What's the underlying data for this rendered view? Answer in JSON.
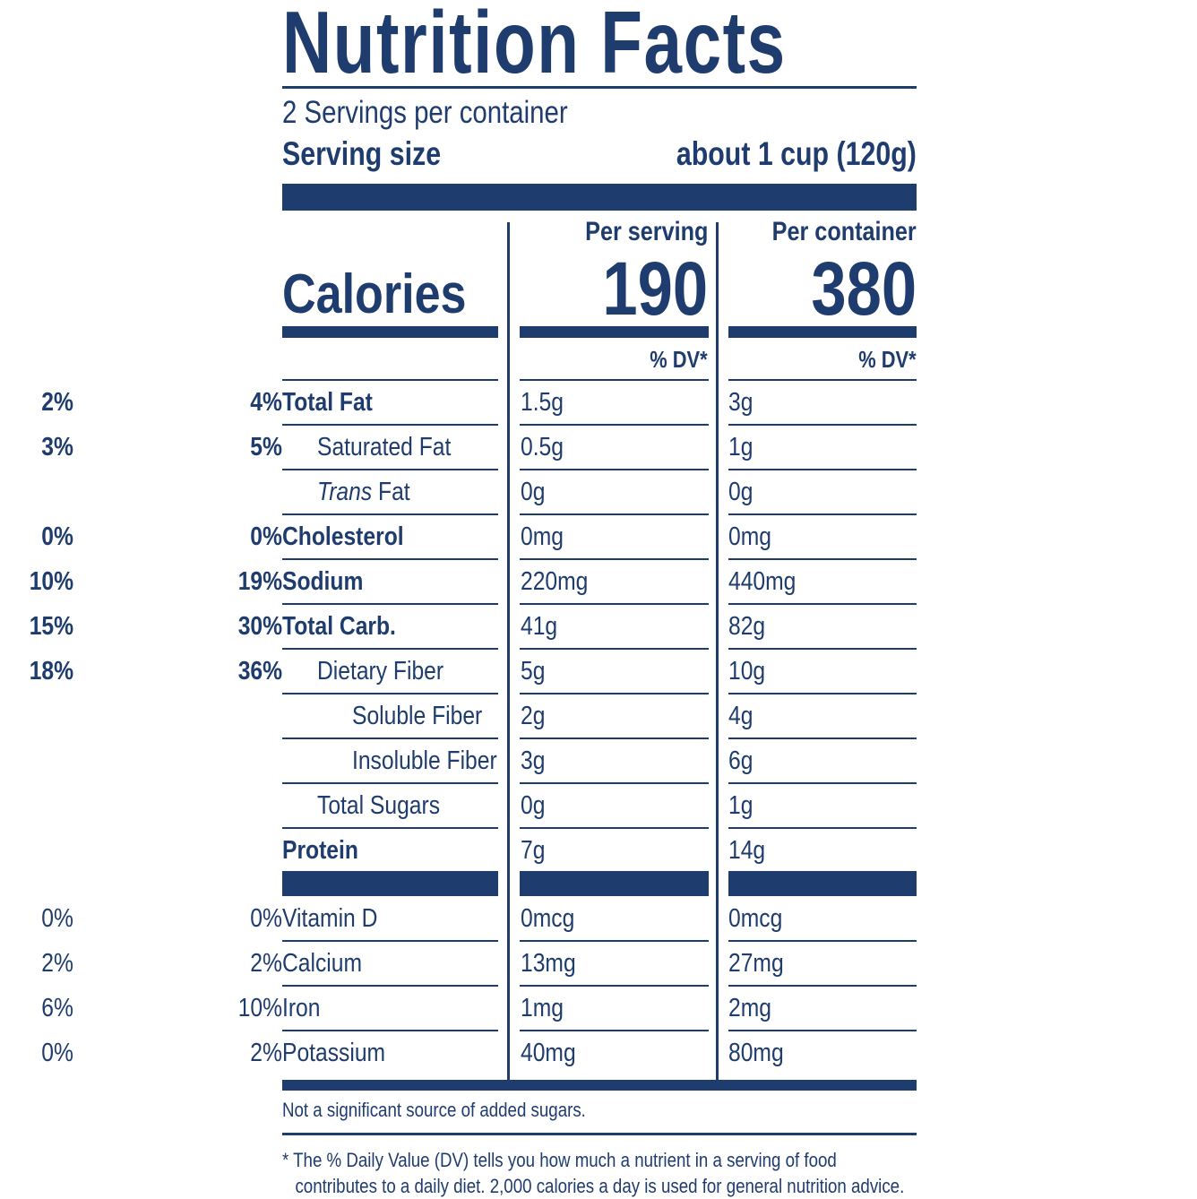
{
  "title": "Nutrition Facts",
  "servings_per_container": "2 Servings per container",
  "serving_size_label": "Serving size",
  "serving_size_value": "about 1 cup (120g)",
  "calories_label": "Calories",
  "columns": [
    {
      "header": "Per serving",
      "calories": "190",
      "dv_header": "% DV*"
    },
    {
      "header": "Per container",
      "calories": "380",
      "dv_header": "% DV*"
    }
  ],
  "nutrients": [
    {
      "name": "Total Fat",
      "bold": true,
      "indent": 0,
      "serving": "1.5g",
      "serving_dv": "2%",
      "container": "3g",
      "container_dv": "4%"
    },
    {
      "name": "Saturated Fat",
      "bold": false,
      "indent": 1,
      "serving": "0.5g",
      "serving_dv": "3%",
      "container": "1g",
      "container_dv": "5%"
    },
    {
      "name_italic": "Trans",
      "name": " Fat",
      "bold": false,
      "indent": 1,
      "serving": "0g",
      "serving_dv": "",
      "container": "0g",
      "container_dv": ""
    },
    {
      "name": "Cholesterol",
      "bold": true,
      "indent": 0,
      "serving": "0mg",
      "serving_dv": "0%",
      "container": "0mg",
      "container_dv": "0%"
    },
    {
      "name": "Sodium",
      "bold": true,
      "indent": 0,
      "serving": "220mg",
      "serving_dv": "10%",
      "container": "440mg",
      "container_dv": "19%"
    },
    {
      "name": "Total Carb.",
      "bold": true,
      "indent": 0,
      "serving": "41g",
      "serving_dv": "15%",
      "container": "82g",
      "container_dv": "30%"
    },
    {
      "name": "Dietary Fiber",
      "bold": false,
      "indent": 1,
      "serving": "5g",
      "serving_dv": "18%",
      "container": "10g",
      "container_dv": "36%"
    },
    {
      "name": "Soluble Fiber",
      "bold": false,
      "indent": 2,
      "serving": "2g",
      "serving_dv": "",
      "container": "4g",
      "container_dv": ""
    },
    {
      "name": "Insoluble Fiber",
      "bold": false,
      "indent": 2,
      "serving": "3g",
      "serving_dv": "",
      "container": "6g",
      "container_dv": ""
    },
    {
      "name": "Total Sugars",
      "bold": false,
      "indent": 1,
      "serving": "0g",
      "serving_dv": "",
      "container": "1g",
      "container_dv": ""
    },
    {
      "name": "Protein",
      "bold": true,
      "indent": 0,
      "serving": "7g",
      "serving_dv": "",
      "container": "14g",
      "container_dv": ""
    }
  ],
  "vitamins": [
    {
      "name": "Vitamin D",
      "serving": "0mcg",
      "serving_dv": "0%",
      "container": "0mcg",
      "container_dv": "0%"
    },
    {
      "name": "Calcium",
      "serving": "13mg",
      "serving_dv": "2%",
      "container": "27mg",
      "container_dv": "2%"
    },
    {
      "name": "Iron",
      "serving": "1mg",
      "serving_dv": "6%",
      "container": "2mg",
      "container_dv": "10%"
    },
    {
      "name": "Potassium",
      "serving": "40mg",
      "serving_dv": "0%",
      "container": "80mg",
      "container_dv": "2%"
    }
  ],
  "added_sugars_note": "Not a significant source of added sugars.",
  "footnote_line1": "* The % Daily Value (DV) tells you how much a nutrient in a serving of food",
  "footnote_line2": "contributes to a daily diet. 2,000 calories a day is used for general nutrition advice.",
  "colors": {
    "ink": "#1f3c6e",
    "background": "#ffffff"
  }
}
